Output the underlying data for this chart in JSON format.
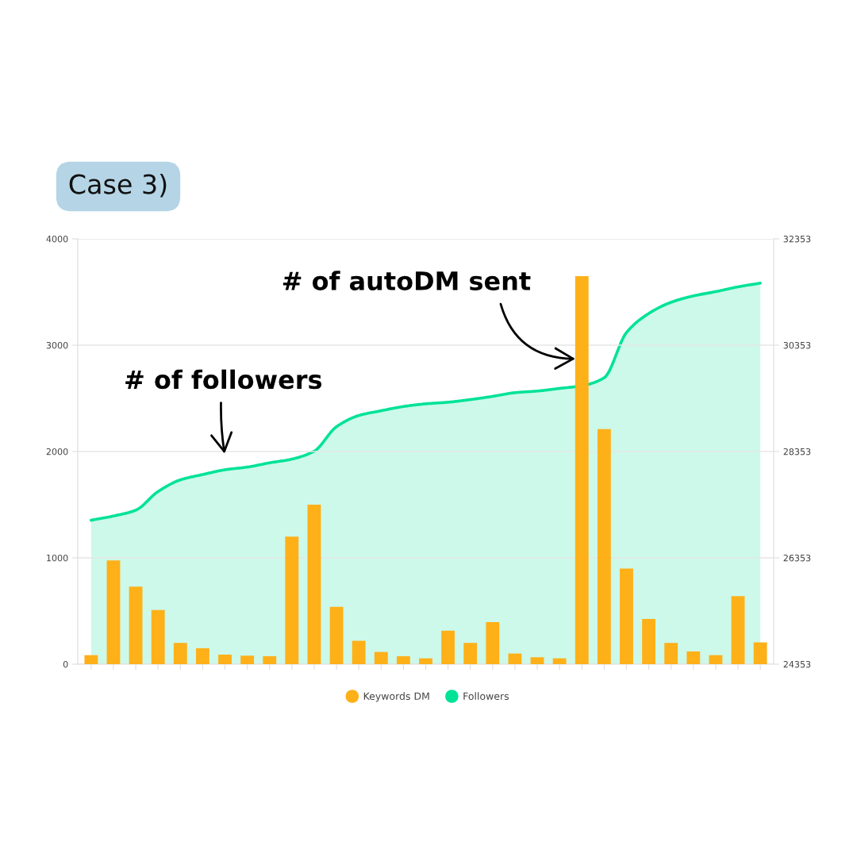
{
  "chart_data": {
    "type": "bar",
    "title": "Case 3)",
    "categories": [
      null,
      null,
      null,
      null,
      null,
      null,
      null,
      null,
      null,
      null,
      null,
      null,
      null,
      null,
      null,
      null,
      null,
      null,
      null,
      null,
      null,
      null,
      null,
      null,
      null,
      null,
      null,
      null,
      null,
      null,
      null
    ],
    "series": [
      {
        "name": "Keywords DM",
        "color": "#feb019",
        "values": [
          85,
          975,
          730,
          510,
          200,
          150,
          90,
          80,
          75,
          1200,
          1500,
          540,
          220,
          115,
          75,
          55,
          315,
          200,
          395,
          100,
          65,
          55,
          3650,
          2210,
          900,
          425,
          200,
          120,
          85,
          640,
          205
        ]
      },
      {
        "name": "Followers",
        "type": "area",
        "axis": "y2",
        "color": "#00e396",
        "values": [
          27060,
          27140,
          27250,
          27600,
          27820,
          27920,
          28010,
          28060,
          28140,
          28210,
          28360,
          28820,
          29030,
          29120,
          29200,
          29250,
          29280,
          29330,
          29390,
          29460,
          29490,
          29540,
          29590,
          29740,
          30590,
          30950,
          31160,
          31280,
          31360,
          31450,
          31520
        ]
      }
    ],
    "ylim": [
      0,
      4000
    ],
    "yticks": [
      0,
      1000,
      2000,
      3000,
      4000
    ],
    "y2lim": [
      24353,
      32353
    ],
    "y2ticks": [
      24353,
      26353,
      28353,
      30353,
      32353
    ],
    "grid": "y",
    "legend": "bottom",
    "annotations": [
      "# of followers",
      "# of autoDM sent"
    ]
  }
}
